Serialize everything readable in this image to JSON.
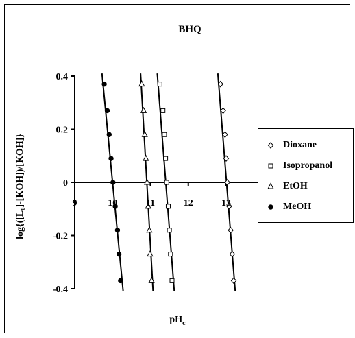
{
  "chart_data": {
    "type": "scatter",
    "title": "BHQ",
    "xlabel_main": "pH",
    "xlabel_sub": "c",
    "ylabel": "log{([L₀]-[KOH])/[KOH]}",
    "xlim": [
      9,
      13
    ],
    "ylim": [
      -0.4,
      0.4
    ],
    "x_ticks": [
      "9",
      "10",
      "11",
      "12",
      "13"
    ],
    "y_ticks": [
      "0.4",
      "0.2",
      "0",
      "-0.2",
      "-0.4"
    ],
    "grid": false,
    "legend_position": "right",
    "series": [
      {
        "name": "Dioxane",
        "marker": "diamond-open",
        "x": [
          12.85,
          12.92,
          12.97,
          13.0,
          13.03,
          13.08,
          13.12,
          13.16,
          13.2
        ],
        "y": [
          0.37,
          0.27,
          0.18,
          0.09,
          0.0,
          -0.09,
          -0.18,
          -0.27,
          -0.37
        ],
        "fit": [
          [
            12.78,
            0.41
          ],
          [
            13.24,
            -0.41
          ]
        ]
      },
      {
        "name": "Isopropanol",
        "marker": "square-open",
        "x": [
          11.25,
          11.33,
          11.37,
          11.4,
          11.43,
          11.47,
          11.5,
          11.53,
          11.57
        ],
        "y": [
          0.37,
          0.27,
          0.18,
          0.09,
          0.0,
          -0.09,
          -0.18,
          -0.27,
          -0.37
        ],
        "fit": [
          [
            11.18,
            0.41
          ],
          [
            11.63,
            -0.41
          ]
        ]
      },
      {
        "name": "EtOH",
        "marker": "triangle-open",
        "x": [
          10.77,
          10.82,
          10.85,
          10.88,
          10.91,
          10.94,
          10.97,
          10.99,
          11.03
        ],
        "y": [
          0.37,
          0.27,
          0.18,
          0.09,
          0.0,
          -0.09,
          -0.18,
          -0.27,
          -0.37
        ],
        "fit": [
          [
            10.74,
            0.41
          ],
          [
            11.07,
            -0.41
          ]
        ]
      },
      {
        "name": "MeOH",
        "marker": "circle-filled",
        "x": [
          9.78,
          9.86,
          9.91,
          9.96,
          10.01,
          10.07,
          10.13,
          10.17,
          10.21
        ],
        "y": [
          0.37,
          0.27,
          0.18,
          0.09,
          0.0,
          -0.09,
          -0.18,
          -0.27,
          -0.37
        ],
        "fit": [
          [
            9.72,
            0.41
          ],
          [
            10.28,
            -0.41
          ]
        ]
      }
    ]
  }
}
